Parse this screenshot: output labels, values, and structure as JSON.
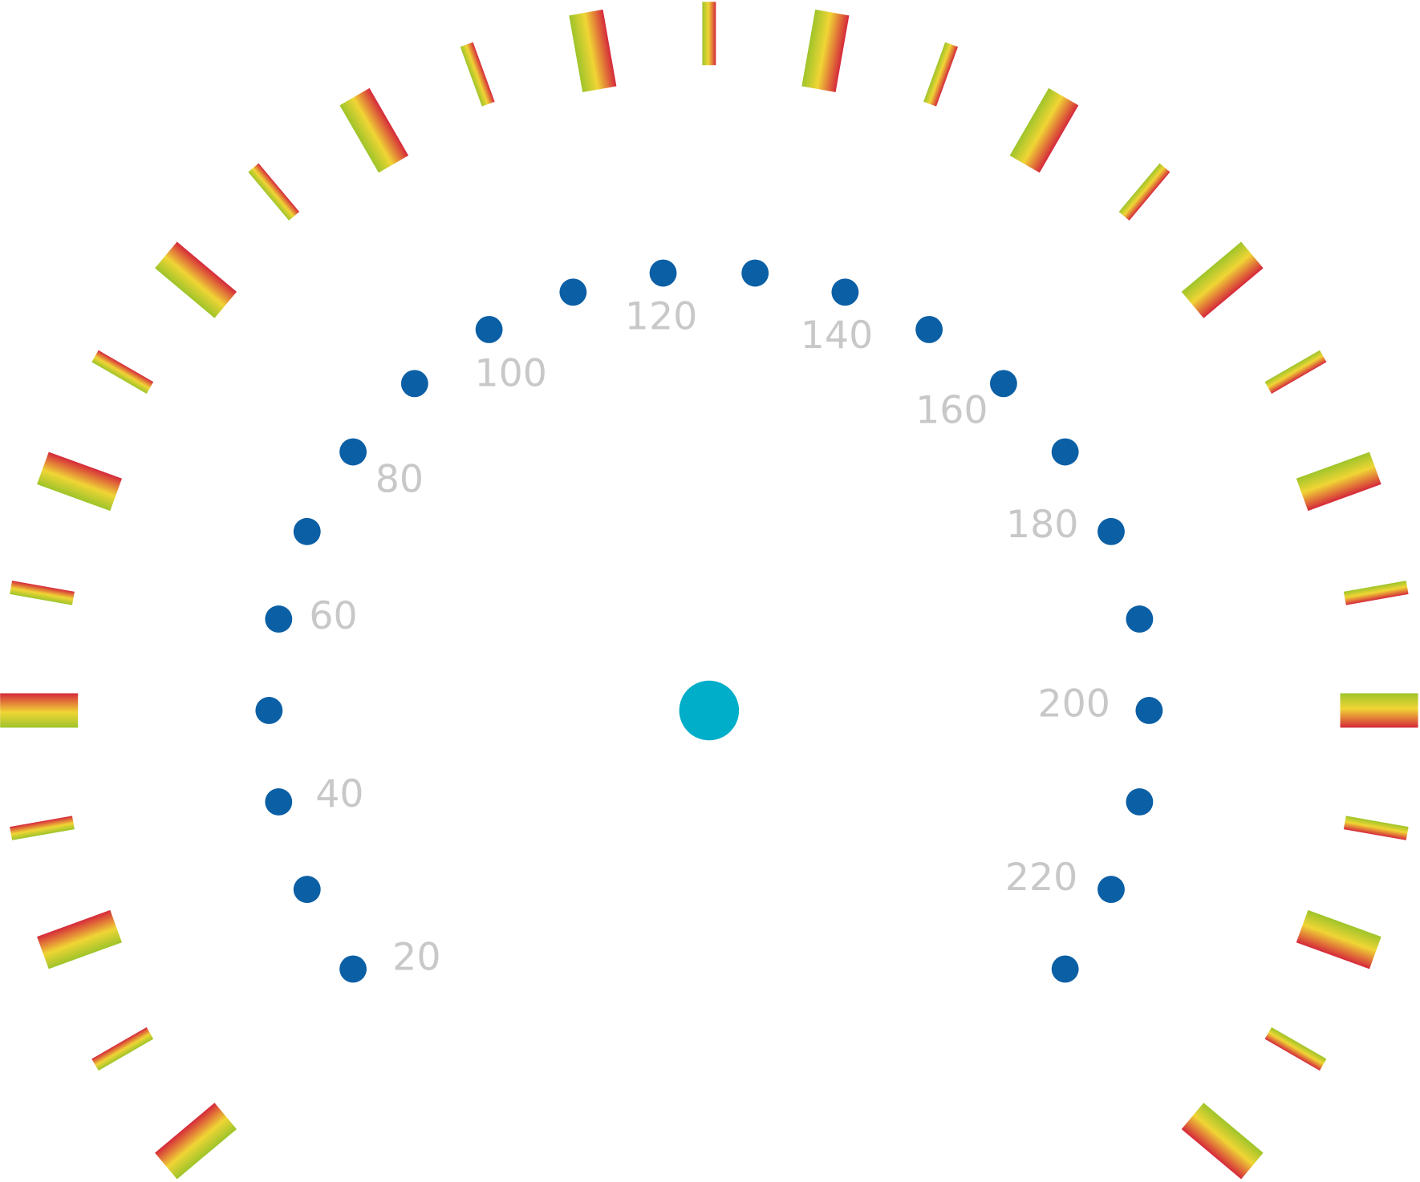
{
  "gauge": {
    "labels": [
      "20",
      "40",
      "60",
      "80",
      "100",
      "120",
      "140",
      "160",
      "180",
      "200",
      "220"
    ]
  }
}
